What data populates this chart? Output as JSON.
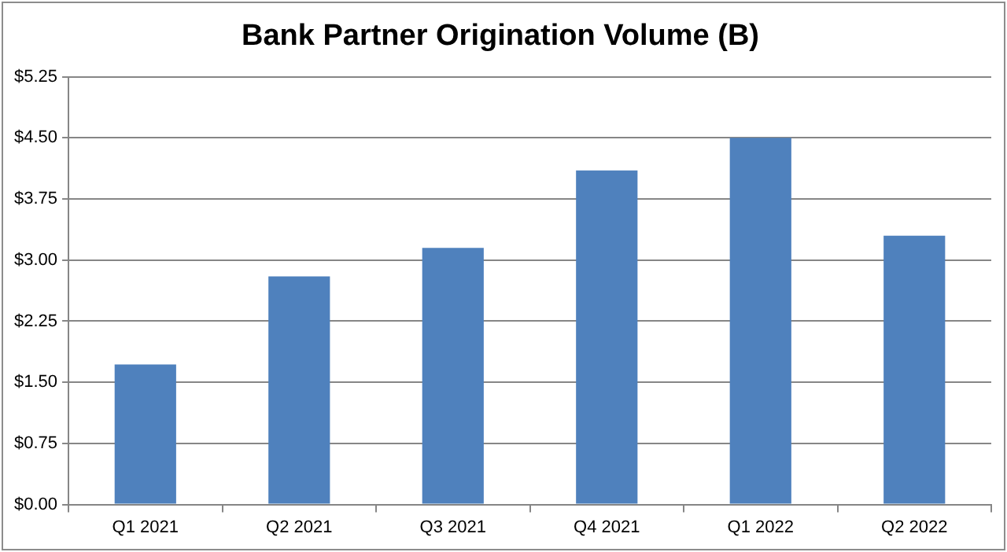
{
  "chart_data": {
    "type": "bar",
    "title": "Bank Partner Origination Volume (B)",
    "categories": [
      "Q1 2021",
      "Q2 2021",
      "Q3 2021",
      "Q4 2021",
      "Q1 2022",
      "Q2 2022"
    ],
    "values": [
      1.72,
      2.8,
      3.15,
      4.1,
      4.5,
      3.3
    ],
    "color": "#4f81bd",
    "ylim": [
      0,
      5.25
    ],
    "yticks": [
      {
        "value": 0,
        "label": "$0.00"
      },
      {
        "value": 0.75,
        "label": "$0.75"
      },
      {
        "value": 1.5,
        "label": "$1.50"
      },
      {
        "value": 2.25,
        "label": "$2.25"
      },
      {
        "value": 3,
        "label": "$3.00"
      },
      {
        "value": 3.75,
        "label": "$3.75"
      },
      {
        "value": 4.5,
        "label": "$4.50"
      },
      {
        "value": 5.25,
        "label": "$5.25"
      }
    ],
    "grid": "y",
    "legend": false
  }
}
